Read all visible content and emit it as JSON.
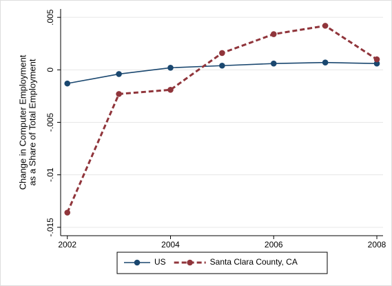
{
  "chart_data": {
    "type": "line",
    "ylabel": [
      "Change in Computer Employment",
      "as a Share of Total Employment"
    ],
    "x": [
      2002,
      2003,
      2004,
      2005,
      2006,
      2007,
      2008
    ],
    "series": [
      {
        "name": "US",
        "color": "#1a476f",
        "dashed": false,
        "values": [
          -0.0013,
          -0.0004,
          0.0002,
          0.0004,
          0.0006,
          0.0007,
          0.0006
        ]
      },
      {
        "name": "Santa Clara County, CA",
        "color": "#90353b",
        "dashed": true,
        "values": [
          -0.0136,
          -0.0023,
          -0.0019,
          0.0016,
          0.0034,
          0.0042,
          0.001
        ]
      }
    ],
    "xlim": [
      2001.87,
      2008.12
    ],
    "xticks": [
      2002,
      2004,
      2006,
      2008
    ],
    "ylim": [
      -0.0158,
      0.0058
    ],
    "yticks": [
      {
        "value": 0.005,
        "label": ".005"
      },
      0,
      {
        "value": -0.005,
        "label": "-.005"
      },
      {
        "value": -0.01,
        "label": "-.01"
      },
      {
        "value": -0.015,
        "label": "-.015"
      }
    ],
    "grid": true
  }
}
